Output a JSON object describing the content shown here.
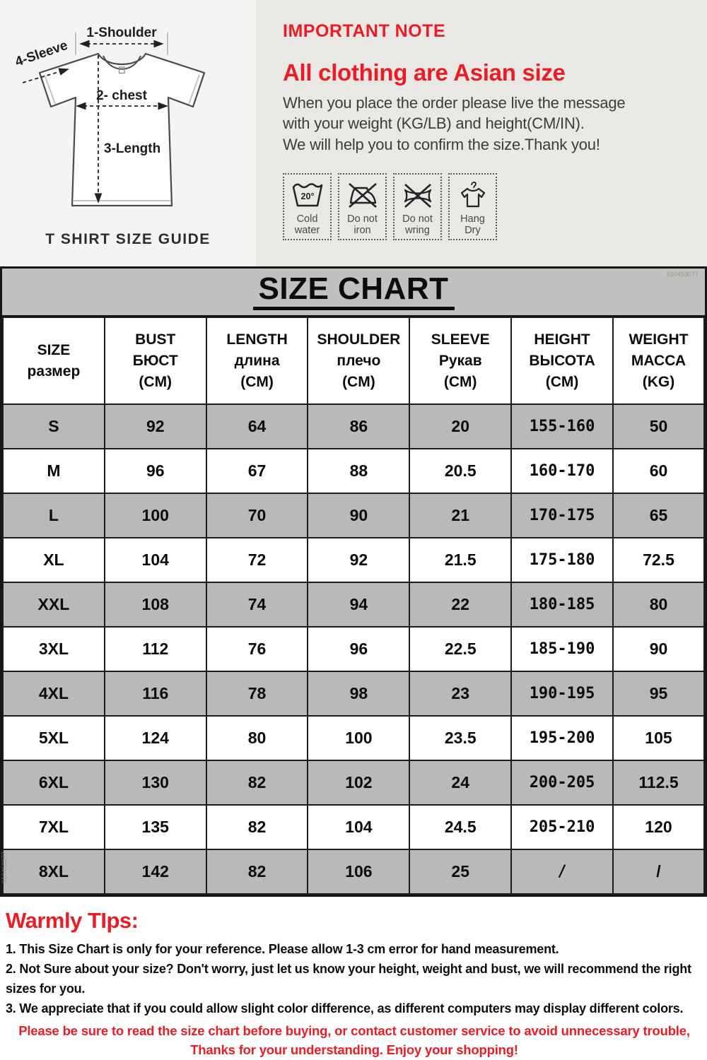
{
  "colors": {
    "accent_red": "#ec1c24",
    "left_panel_bg": "#f5f4f2",
    "right_panel_bg": "#e9e8e5",
    "table_row_gray": "#bab9b7",
    "title_bar_gray": "#c2c1bf",
    "body_text": "#3c3c3c"
  },
  "size_guide": {
    "caption": "T SHIRT SIZE GUIDE",
    "labels": {
      "shoulder": "1-Shoulder",
      "sleeve": "4-Sleeve",
      "chest": "2- chest",
      "length": "3-Length"
    }
  },
  "important_note": {
    "title": "IMPORTANT NOTE",
    "headline": "All clothing are Asian size",
    "line1": "When you place the order please live the message",
    "line2": "with your weight (KG/LB) and height(CM/IN).",
    "line3": "We will help you to confirm the size.Thank you!",
    "care_icons": [
      {
        "name": "cold-water-icon",
        "temp": "20°",
        "label1": "Cold",
        "label2": "water"
      },
      {
        "name": "do-not-iron-icon",
        "label1": "Do not",
        "label2": "iron"
      },
      {
        "name": "do-not-wring-icon",
        "label1": "Do not",
        "label2": "wring"
      },
      {
        "name": "hang-dry-icon",
        "label1": "Hang",
        "label2": "Dry"
      }
    ]
  },
  "size_chart": {
    "title": "SIZE CHART",
    "watermark": "910453077",
    "columns": [
      {
        "key": "size",
        "lines": [
          "SIZE",
          "размер"
        ]
      },
      {
        "key": "bust",
        "lines": [
          "BUST",
          "БЮСТ",
          "(CM)"
        ]
      },
      {
        "key": "length",
        "lines": [
          "LENGTH",
          "длина",
          "(CM)"
        ]
      },
      {
        "key": "shoulder",
        "lines": [
          "SHOULDER",
          "плечо",
          "(CM)"
        ]
      },
      {
        "key": "sleeve",
        "lines": [
          "SLEEVE",
          "Рукав",
          "(CM)"
        ]
      },
      {
        "key": "height",
        "lines": [
          "HEIGHT",
          "ВЫСОТА",
          "(CM)"
        ]
      },
      {
        "key": "weight",
        "lines": [
          "WEIGHT",
          "МАССА",
          "(KG)"
        ]
      }
    ],
    "rows": [
      [
        "S",
        "92",
        "64",
        "86",
        "20",
        "155-160",
        "50"
      ],
      [
        "M",
        "96",
        "67",
        "88",
        "20.5",
        "160-170",
        "60"
      ],
      [
        "L",
        "100",
        "70",
        "90",
        "21",
        "170-175",
        "65"
      ],
      [
        "XL",
        "104",
        "72",
        "92",
        "21.5",
        "175-180",
        "72.5"
      ],
      [
        "XXL",
        "108",
        "74",
        "94",
        "22",
        "180-185",
        "80"
      ],
      [
        "3XL",
        "112",
        "76",
        "96",
        "22.5",
        "185-190",
        "90"
      ],
      [
        "4XL",
        "116",
        "78",
        "98",
        "23",
        "190-195",
        "95"
      ],
      [
        "5XL",
        "124",
        "80",
        "100",
        "23.5",
        "195-200",
        "105"
      ],
      [
        "6XL",
        "130",
        "82",
        "102",
        "24",
        "200-205",
        "112.5"
      ],
      [
        "7XL",
        "135",
        "82",
        "104",
        "24.5",
        "205-210",
        "120"
      ],
      [
        "8XL",
        "142",
        "82",
        "106",
        "25",
        "/",
        "/"
      ]
    ]
  },
  "warmly_tips": {
    "title": "Warmly TIps:",
    "tip1": "1. This Size Chart is only for your reference. Please allow 1-3 cm error for hand measurement.",
    "tip2": "2. Not Sure about your size? Don't worry, just let us know your height, weight and bust, we will recommend the right sizes for you.",
    "tip3": "3. We appreciate that if you could allow slight color difference, as different computers may display different colors.",
    "red_line1": "Please be sure to read the size chart before buying, or contact customer service to avoid unnecessary trouble,",
    "red_line2": "Thanks for your understanding. Enjoy your shopping!"
  }
}
